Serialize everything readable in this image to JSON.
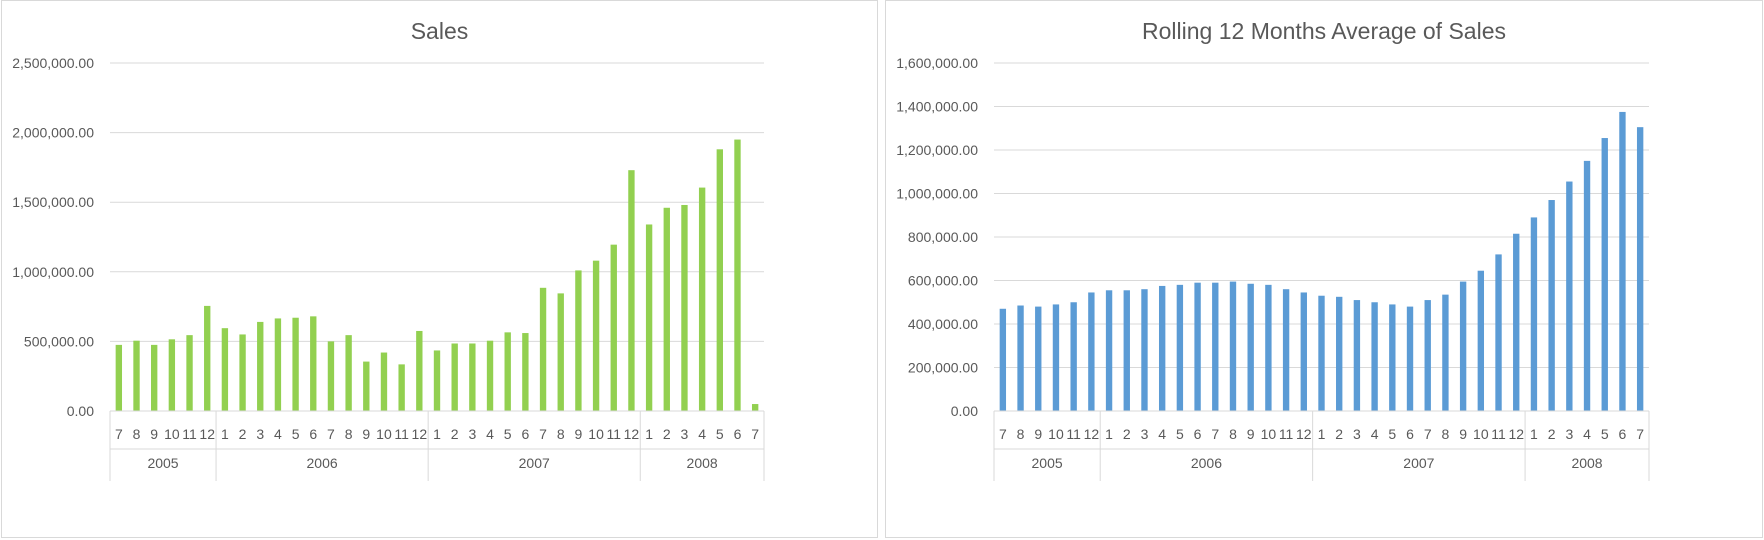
{
  "chart_data": [
    {
      "type": "bar",
      "title": "Sales",
      "xlabel": "",
      "ylabel": "",
      "ylim": [
        0,
        2500000
      ],
      "yticks": [
        "0.00",
        "500,000.00",
        "1,000,000.00",
        "1,500,000.00",
        "2,000,000.00",
        "2,500,000.00"
      ],
      "grid": true,
      "legend": "none",
      "bar_color": "#92d050",
      "years": [
        {
          "label": "2005",
          "months": [
            "7",
            "8",
            "9",
            "10",
            "11",
            "12"
          ]
        },
        {
          "label": "2006",
          "months": [
            "1",
            "2",
            "3",
            "4",
            "5",
            "6",
            "7",
            "8",
            "9",
            "10",
            "11",
            "12"
          ]
        },
        {
          "label": "2007",
          "months": [
            "1",
            "2",
            "3",
            "4",
            "5",
            "6",
            "7",
            "8",
            "9",
            "10",
            "11",
            "12"
          ]
        },
        {
          "label": "2008",
          "months": [
            "1",
            "2",
            "3",
            "4",
            "5",
            "6",
            "7"
          ]
        }
      ],
      "values": [
        475000,
        505000,
        475000,
        515000,
        545000,
        755000,
        595000,
        550000,
        640000,
        665000,
        670000,
        680000,
        500000,
        545000,
        355000,
        420000,
        335000,
        575000,
        435000,
        485000,
        485000,
        505000,
        565000,
        560000,
        885000,
        845000,
        1010000,
        1080000,
        1195000,
        1730000,
        1340000,
        1460000,
        1480000,
        1605000,
        1880000,
        1950000,
        50000
      ]
    },
    {
      "type": "bar",
      "title": "Rolling 12 Months Average of Sales",
      "xlabel": "",
      "ylabel": "",
      "ylim": [
        0,
        1600000
      ],
      "yticks": [
        "0.00",
        "200,000.00",
        "400,000.00",
        "600,000.00",
        "800,000.00",
        "1,000,000.00",
        "1,200,000.00",
        "1,400,000.00",
        "1,600,000.00"
      ],
      "grid": true,
      "legend": "none",
      "bar_color": "#5b9bd5",
      "years": [
        {
          "label": "2005",
          "months": [
            "7",
            "8",
            "9",
            "10",
            "11",
            "12"
          ]
        },
        {
          "label": "2006",
          "months": [
            "1",
            "2",
            "3",
            "4",
            "5",
            "6",
            "7",
            "8",
            "9",
            "10",
            "11",
            "12"
          ]
        },
        {
          "label": "2007",
          "months": [
            "1",
            "2",
            "3",
            "4",
            "5",
            "6",
            "7",
            "8",
            "9",
            "10",
            "11",
            "12"
          ]
        },
        {
          "label": "2008",
          "months": [
            "1",
            "2",
            "3",
            "4",
            "5",
            "6",
            "7"
          ]
        }
      ],
      "values": [
        470000,
        485000,
        480000,
        490000,
        500000,
        545000,
        555000,
        555000,
        560000,
        575000,
        580000,
        590000,
        590000,
        595000,
        585000,
        580000,
        560000,
        545000,
        530000,
        525000,
        510000,
        500000,
        490000,
        480000,
        510000,
        535000,
        595000,
        645000,
        720000,
        815000,
        890000,
        970000,
        1055000,
        1150000,
        1255000,
        1375000,
        1305000
      ]
    }
  ]
}
